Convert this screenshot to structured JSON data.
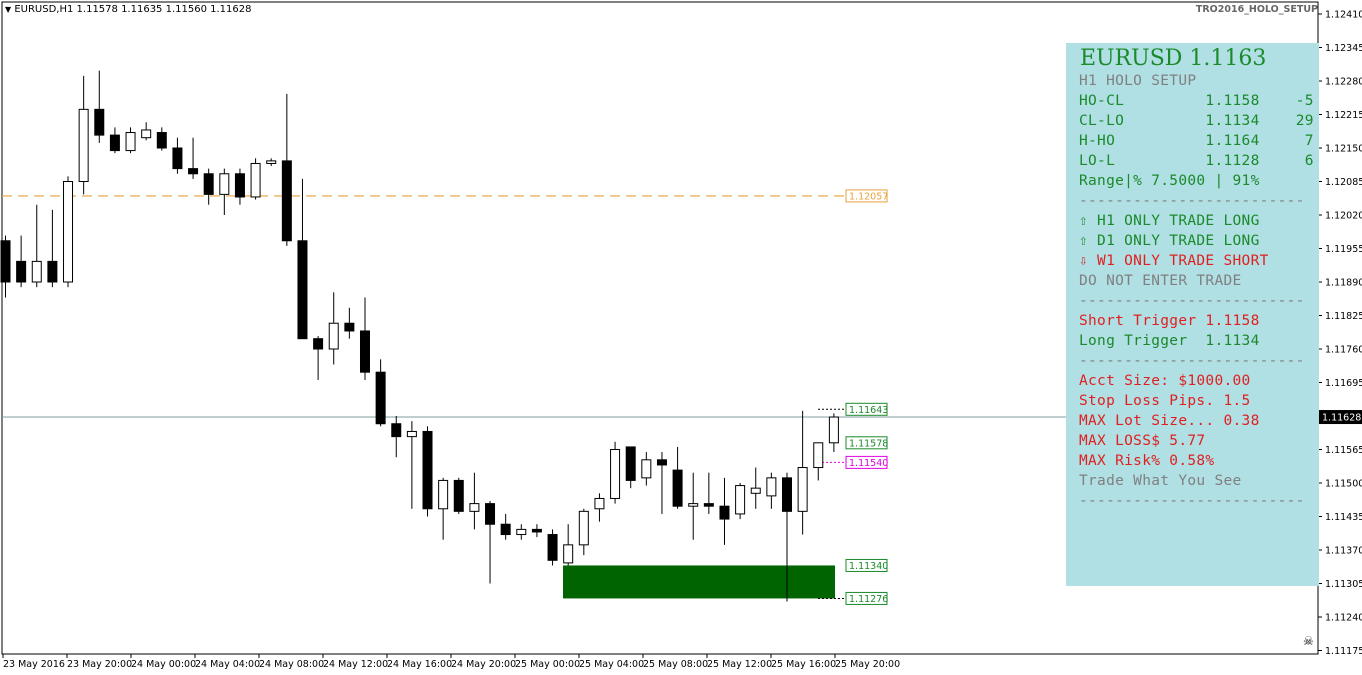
{
  "colors": {
    "up_candle": "#ffffff",
    "down_candle": "#000000",
    "dashed_orange": "#e8a23a",
    "green_zone": "#006400",
    "current_price_line": "#7f9f9f",
    "panel_bg": "#b0dfe4",
    "text_green": "#1a8a2a",
    "text_red": "#e02020",
    "text_gray": "#808080",
    "magenta": "#e000e0"
  },
  "header": {
    "menu_icon": "triangle-down-icon",
    "symbol_info": "EURUSD,H1  1.11578 1.11635 1.11560 1.11628",
    "indicator_name": "TRO2016_HOLO_SETUP"
  },
  "panel": {
    "title": "EURUSD 1.1163",
    "lines": [
      {
        "text": "H1 HOLO SETUP",
        "color": "gray"
      },
      {
        "text": "HO-CL         1.1158    -5",
        "color": "green"
      },
      {
        "text": "CL-LO         1.1134    29",
        "color": "green"
      },
      {
        "text": "H-HO          1.1164     7",
        "color": "green"
      },
      {
        "text": "LO-L          1.1128     6",
        "color": "green"
      },
      {
        "text": "Range|% 7.5000 | 91%",
        "color": "green"
      },
      {
        "text": "-------------------------",
        "color": "gray"
      },
      {
        "text": "⇧ H1 ONLY TRADE LONG",
        "color": "green"
      },
      {
        "text": "⇧ D1 ONLY TRADE LONG",
        "color": "green"
      },
      {
        "text": "⇩ W1 ONLY TRADE SHORT",
        "color": "red"
      },
      {
        "text": "DO NOT ENTER TRADE",
        "color": "gray"
      },
      {
        "text": "-------------------------",
        "color": "gray"
      },
      {
        "text": "Short Trigger 1.1158",
        "color": "red"
      },
      {
        "text": "Long Trigger  1.1134",
        "color": "green"
      },
      {
        "text": "-------------------------",
        "color": "gray"
      },
      {
        "text": "Acct Size: $1000.00",
        "color": "red"
      },
      {
        "text": "Stop Loss Pips. 1.5",
        "color": "red"
      },
      {
        "text": "MAX Lot Size... 0.38",
        "color": "red"
      },
      {
        "text": "MAX LOSS$ 5.77",
        "color": "red"
      },
      {
        "text": "MAX Risk% 0.58%",
        "color": "red"
      },
      {
        "text": "Trade What You See",
        "color": "gray"
      },
      {
        "text": "-------------------------",
        "color": "gray"
      }
    ]
  },
  "chart_data": {
    "type": "candlestick",
    "symbol": "EURUSD",
    "timeframe": "H1",
    "ylim": [
      1.11175,
      1.1244
    ],
    "y_ticks": [
      "1.12410",
      "1.12345",
      "1.12280",
      "1.12215",
      "1.12150",
      "1.12085",
      "1.12020",
      "1.11955",
      "1.11890",
      "1.11825",
      "1.11760",
      "1.11695",
      "1.11628",
      "1.11565",
      "1.11500",
      "1.11435",
      "1.11370",
      "1.11305",
      "1.11240",
      "1.11175"
    ],
    "x_ticks": [
      "23 May 2016",
      "23 May 20:00",
      "24 May 00:00",
      "24 May 04:00",
      "24 May 08:00",
      "24 May 12:00",
      "24 May 16:00",
      "24 May 20:00",
      "25 May 00:00",
      "25 May 04:00",
      "25 May 08:00",
      "25 May 12:00",
      "25 May 16:00",
      "25 May 20:00"
    ],
    "candles": [
      {
        "o": 1.1197,
        "h": 1.1198,
        "l": 1.1186,
        "c": 1.1189
      },
      {
        "o": 1.1193,
        "h": 1.1198,
        "l": 1.1188,
        "c": 1.1189
      },
      {
        "o": 1.1189,
        "h": 1.1204,
        "l": 1.1188,
        "c": 1.1193
      },
      {
        "o": 1.1193,
        "h": 1.1203,
        "l": 1.1188,
        "c": 1.1189
      },
      {
        "o": 1.1189,
        "h": 1.12095,
        "l": 1.1188,
        "c": 1.12085
      },
      {
        "o": 1.12085,
        "h": 1.1229,
        "l": 1.1206,
        "c": 1.12225
      },
      {
        "o": 1.12225,
        "h": 1.123,
        "l": 1.1216,
        "c": 1.12175
      },
      {
        "o": 1.12175,
        "h": 1.1219,
        "l": 1.1214,
        "c": 1.12145
      },
      {
        "o": 1.12145,
        "h": 1.1219,
        "l": 1.1214,
        "c": 1.1218
      },
      {
        "o": 1.1217,
        "h": 1.122,
        "l": 1.12165,
        "c": 1.12185
      },
      {
        "o": 1.1218,
        "h": 1.1219,
        "l": 1.12145,
        "c": 1.1215
      },
      {
        "o": 1.1215,
        "h": 1.1217,
        "l": 1.121,
        "c": 1.1211
      },
      {
        "o": 1.1211,
        "h": 1.1217,
        "l": 1.1209,
        "c": 1.121
      },
      {
        "o": 1.121,
        "h": 1.1211,
        "l": 1.1204,
        "c": 1.1206
      },
      {
        "o": 1.1206,
        "h": 1.1211,
        "l": 1.1202,
        "c": 1.121
      },
      {
        "o": 1.121,
        "h": 1.1211,
        "l": 1.1204,
        "c": 1.12055
      },
      {
        "o": 1.12055,
        "h": 1.1213,
        "l": 1.1205,
        "c": 1.1212
      },
      {
        "o": 1.1212,
        "h": 1.1213,
        "l": 1.12115,
        "c": 1.12125
      },
      {
        "o": 1.12125,
        "h": 1.12255,
        "l": 1.1196,
        "c": 1.1197
      },
      {
        "o": 1.1197,
        "h": 1.1209,
        "l": 1.1178,
        "c": 1.1178
      },
      {
        "o": 1.1178,
        "h": 1.11785,
        "l": 1.117,
        "c": 1.1176
      },
      {
        "o": 1.1176,
        "h": 1.1187,
        "l": 1.1173,
        "c": 1.1181
      },
      {
        "o": 1.1181,
        "h": 1.1184,
        "l": 1.1178,
        "c": 1.11795
      },
      {
        "o": 1.11795,
        "h": 1.1186,
        "l": 1.117,
        "c": 1.11715
      },
      {
        "o": 1.11715,
        "h": 1.1174,
        "l": 1.1161,
        "c": 1.11615
      },
      {
        "o": 1.11615,
        "h": 1.1163,
        "l": 1.1155,
        "c": 1.1159
      },
      {
        "o": 1.1159,
        "h": 1.1162,
        "l": 1.1145,
        "c": 1.116
      },
      {
        "o": 1.116,
        "h": 1.1161,
        "l": 1.11435,
        "c": 1.1145
      },
      {
        "o": 1.1145,
        "h": 1.1151,
        "l": 1.1139,
        "c": 1.11505
      },
      {
        "o": 1.11505,
        "h": 1.1151,
        "l": 1.1144,
        "c": 1.11445
      },
      {
        "o": 1.11445,
        "h": 1.1152,
        "l": 1.1141,
        "c": 1.1146
      },
      {
        "o": 1.1146,
        "h": 1.11465,
        "l": 1.11305,
        "c": 1.1142
      },
      {
        "o": 1.1142,
        "h": 1.1144,
        "l": 1.1139,
        "c": 1.114
      },
      {
        "o": 1.114,
        "h": 1.1142,
        "l": 1.1139,
        "c": 1.1141
      },
      {
        "o": 1.1141,
        "h": 1.1142,
        "l": 1.11395,
        "c": 1.11405
      },
      {
        "o": 1.114,
        "h": 1.1141,
        "l": 1.1134,
        "c": 1.1135
      },
      {
        "o": 1.11345,
        "h": 1.1142,
        "l": 1.1134,
        "c": 1.1138
      },
      {
        "o": 1.1138,
        "h": 1.1145,
        "l": 1.1136,
        "c": 1.11445
      },
      {
        "o": 1.1145,
        "h": 1.1148,
        "l": 1.11425,
        "c": 1.1147
      },
      {
        "o": 1.1147,
        "h": 1.1158,
        "l": 1.1146,
        "c": 1.11565
      },
      {
        "o": 1.1157,
        "h": 1.1157,
        "l": 1.1149,
        "c": 1.11505
      },
      {
        "o": 1.1151,
        "h": 1.1156,
        "l": 1.11495,
        "c": 1.11545
      },
      {
        "o": 1.11545,
        "h": 1.1156,
        "l": 1.1144,
        "c": 1.11535
      },
      {
        "o": 1.11525,
        "h": 1.1157,
        "l": 1.1145,
        "c": 1.11455
      },
      {
        "o": 1.11455,
        "h": 1.1152,
        "l": 1.1139,
        "c": 1.1146
      },
      {
        "o": 1.1146,
        "h": 1.1152,
        "l": 1.1144,
        "c": 1.11455
      },
      {
        "o": 1.11455,
        "h": 1.1151,
        "l": 1.1138,
        "c": 1.1143
      },
      {
        "o": 1.1144,
        "h": 1.115,
        "l": 1.1143,
        "c": 1.11495
      },
      {
        "o": 1.1148,
        "h": 1.1153,
        "l": 1.1145,
        "c": 1.1149
      },
      {
        "o": 1.11475,
        "h": 1.1152,
        "l": 1.1145,
        "c": 1.1151
      },
      {
        "o": 1.1151,
        "h": 1.1152,
        "l": 1.1127,
        "c": 1.11445
      },
      {
        "o": 1.11445,
        "h": 1.1164,
        "l": 1.114,
        "c": 1.1153
      },
      {
        "o": 1.1153,
        "h": 1.11575,
        "l": 1.11505,
        "c": 1.11578
      },
      {
        "o": 1.11578,
        "h": 1.11635,
        "l": 1.1156,
        "c": 1.11628
      }
    ],
    "levels": [
      {
        "label": "1.12057",
        "value": 1.12057,
        "style": "dashed",
        "color": "orange"
      },
      {
        "label": "1.11643",
        "value": 1.11643,
        "style": "dotted",
        "color": "green"
      },
      {
        "label": "1.11578",
        "value": 1.11578,
        "style": "none",
        "color": "green"
      },
      {
        "label": "1.11540",
        "value": 1.1154,
        "style": "dotted",
        "color": "magenta"
      },
      {
        "label": "1.11340",
        "value": 1.1134,
        "style": "none",
        "color": "green"
      },
      {
        "label": "1.11276",
        "value": 1.11276,
        "style": "dotted",
        "color": "green"
      }
    ],
    "current_price": {
      "label": "1.11628",
      "value": 1.11628
    },
    "zone": {
      "top": 1.1134,
      "bottom": 1.11276
    }
  }
}
